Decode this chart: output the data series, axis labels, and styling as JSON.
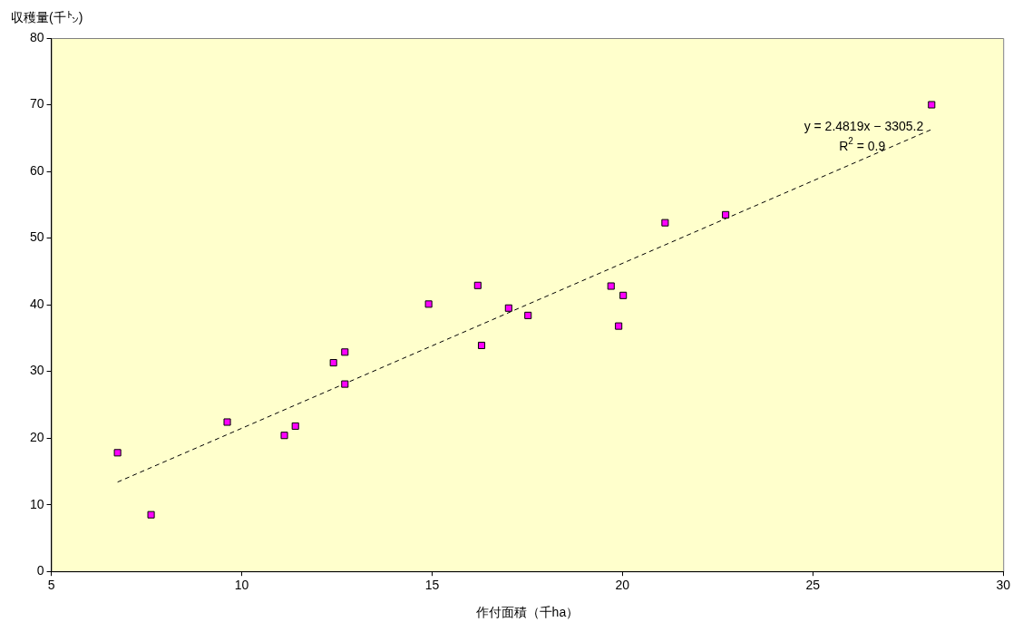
{
  "chart_data": {
    "type": "scatter",
    "xlabel": "作付面積（千ha）",
    "ylabel": "収穫量(千㌧)",
    "xlim": [
      5,
      30
    ],
    "xticks": [
      5,
      10,
      15,
      20,
      25,
      30
    ],
    "ylim": [
      0,
      80
    ],
    "yticks": [
      0,
      10,
      20,
      30,
      40,
      50,
      60,
      70,
      80
    ],
    "grid": false,
    "legend": false,
    "marker": "square",
    "series": [
      {
        "color": "#ff00ff",
        "x": [
          6.74,
          7.62,
          9.62,
          11.12,
          11.41,
          12.41,
          12.71,
          12.71,
          14.91,
          16.2,
          16.3,
          17.01,
          17.52,
          19.7,
          19.9,
          20.02,
          21.12,
          22.71,
          28.12
        ],
        "values": [
          17.8,
          8.5,
          22.4,
          20.4,
          21.8,
          31.3,
          32.9,
          28.1,
          40.1,
          42.9,
          33.9,
          39.5,
          38.4,
          42.8,
          36.8,
          41.4,
          52.3,
          53.5,
          70.0
        ]
      },
      {
        "type": "line",
        "color": "#000000",
        "line_style": "dashed",
        "marker": "none",
        "x": [
          6.74,
          28.12
        ],
        "values": [
          13.4,
          66.3
        ]
      }
    ],
    "annotations": [
      "y = 2.4819x − 3305.2",
      "R$^{2}$ = 0.9"
    ]
  }
}
